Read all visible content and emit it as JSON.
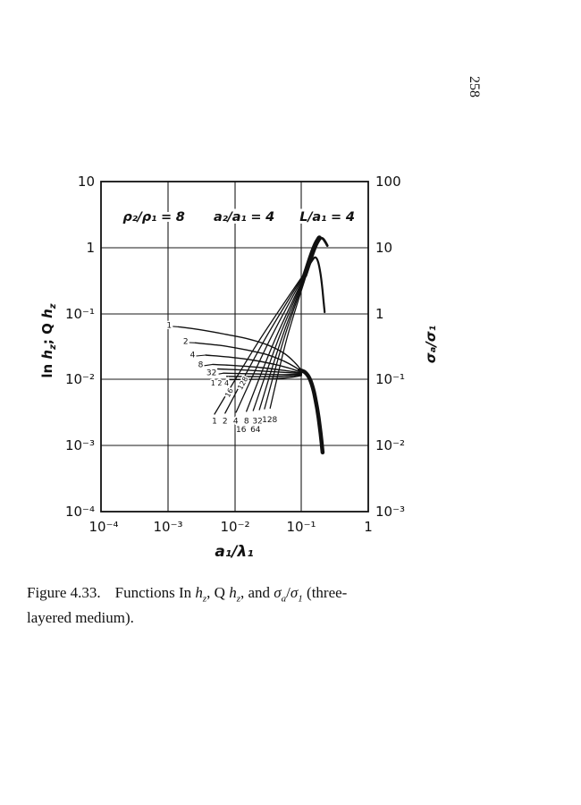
{
  "page": {
    "number": "258"
  },
  "caption": {
    "figure_label": "Figure 4.33.",
    "t1": "Functions In ",
    "h1": "h",
    "sub1": "z",
    "t2": ", Q ",
    "h2": "h",
    "sub2": "z",
    "t3": ", and ",
    "sig1": "σ",
    "suba": "a",
    "t4": "/",
    "sig2": "σ",
    "subn": "1",
    "t5": " (three-",
    "line2": "layered medium)."
  },
  "chart_data": {
    "type": "line",
    "scale": "log-log",
    "parameters": [
      "ρ₂/ρ₁ = 8",
      "a₂/a₁ = 4",
      "L/a₁ = 4"
    ],
    "axes": {
      "x": {
        "label": "a₁/λ₁",
        "scale": "log",
        "range": [
          0.0001,
          1
        ],
        "ticks": [
          "10⁻⁴",
          "10⁻³",
          "10⁻²",
          "10⁻¹",
          "1"
        ]
      },
      "y_left": {
        "label_parts": {
          "p1": "ln ",
          "h1": "h",
          "s1": "z",
          "p2": "; Q ",
          "h2": "h",
          "s2": "z"
        },
        "scale": "log",
        "range": [
          0.0001,
          10
        ],
        "ticks": [
          "10",
          "1",
          "10⁻¹",
          "10⁻²",
          "10⁻³",
          "10⁻⁴"
        ]
      },
      "y_right": {
        "label": "σₐ/σ₁",
        "scale": "log",
        "range": [
          0.001,
          100
        ],
        "ticks": [
          "100",
          "10",
          "1",
          "10⁻¹",
          "10⁻²",
          "10⁻³"
        ]
      }
    },
    "series": {
      "rising_lines": [
        {
          "label": "1",
          "points": [
            [
              0.005,
              0.003
            ],
            [
              0.0235,
              0.0395
            ],
            [
              0.13,
              0.52
            ]
          ]
        },
        {
          "label": "2",
          "points": [
            [
              0.0072,
              0.0031
            ],
            [
              0.0281,
              0.0401
            ],
            [
              0.13,
              0.52
            ]
          ]
        },
        {
          "label": "4",
          "points": [
            [
              0.0105,
              0.0032
            ],
            [
              0.034,
              0.0408
            ],
            [
              0.13,
              0.52
            ]
          ]
        },
        {
          "label": "8",
          "points": [
            [
              0.015,
              0.0033
            ],
            [
              0.0406,
              0.0414
            ],
            [
              0.13,
              0.52
            ]
          ]
        },
        {
          "label": "16",
          "points": [
            [
              0.019,
              0.0034
            ],
            [
              0.0457,
              0.042
            ],
            [
              0.13,
              0.52
            ]
          ]
        },
        {
          "label": "32",
          "points": [
            [
              0.0235,
              0.0035
            ],
            [
              0.0508,
              0.0427
            ],
            [
              0.13,
              0.52
            ]
          ]
        },
        {
          "label": "64",
          "points": [
            [
              0.028,
              0.0036
            ],
            [
              0.0555,
              0.0433
            ],
            [
              0.13,
              0.52
            ]
          ]
        },
        {
          "label": "128",
          "points": [
            [
              0.034,
              0.0037
            ],
            [
              0.0612,
              0.0439
            ],
            [
              0.13,
              0.52
            ]
          ]
        }
      ],
      "rising_bundle": {
        "points": [
          [
            0.112,
            0.38
          ],
          [
            0.138,
            0.72
          ],
          [
            0.163,
            1.12
          ],
          [
            0.185,
            1.4
          ]
        ],
        "width": 5.5
      },
      "rising_hook": {
        "points": [
          [
            0.185,
            1.4
          ],
          [
            0.208,
            1.37
          ],
          [
            0.227,
            1.22
          ],
          [
            0.244,
            1.07
          ]
        ],
        "width": 2.8
      },
      "secondary_peak": {
        "points": [
          [
            0.108,
            0.34
          ],
          [
            0.128,
            0.52
          ],
          [
            0.148,
            0.66
          ],
          [
            0.163,
            0.71
          ],
          [
            0.178,
            0.6
          ],
          [
            0.193,
            0.4
          ],
          [
            0.206,
            0.235
          ],
          [
            0.216,
            0.14
          ],
          [
            0.2225,
            0.105
          ]
        ],
        "width": 2.2
      },
      "flat_curves": [
        {
          "label": "1",
          "points": [
            [
              0.00145,
              0.063
            ],
            [
              0.003,
              0.057
            ],
            [
              0.007,
              0.049
            ],
            [
              0.015,
              0.042
            ],
            [
              0.03,
              0.034
            ],
            [
              0.055,
              0.025
            ],
            [
              0.08,
              0.018
            ],
            [
              0.1,
              0.0138
            ]
          ]
        },
        {
          "label": "2",
          "points": [
            [
              0.0026,
              0.036
            ],
            [
              0.006,
              0.033
            ],
            [
              0.013,
              0.029
            ],
            [
              0.03,
              0.024
            ],
            [
              0.055,
              0.019
            ],
            [
              0.08,
              0.0155
            ],
            [
              0.1,
              0.0132
            ]
          ]
        },
        {
          "label": "4",
          "points": [
            [
              0.0037,
              0.0235
            ],
            [
              0.008,
              0.022
            ],
            [
              0.02,
              0.0195
            ],
            [
              0.045,
              0.0165
            ],
            [
              0.075,
              0.0143
            ],
            [
              0.1,
              0.0129
            ]
          ]
        },
        {
          "label": "8",
          "points": [
            [
              0.0047,
              0.017
            ],
            [
              0.01,
              0.0163
            ],
            [
              0.025,
              0.0152
            ],
            [
              0.055,
              0.0138
            ],
            [
              0.1,
              0.0126
            ]
          ]
        },
        {
          "label": "16",
          "points": [
            [
              0.0056,
              0.0145
            ],
            [
              0.015,
              0.0139
            ],
            [
              0.04,
              0.0131
            ],
            [
              0.1,
              0.0124
            ]
          ]
        },
        {
          "label": "32",
          "points": [
            [
              0.0068,
              0.0125
            ],
            [
              0.02,
              0.0122
            ],
            [
              0.05,
              0.0119
            ],
            [
              0.1,
              0.0121
            ]
          ]
        },
        {
          "label": "64",
          "points": [
            [
              0.0076,
              0.0112
            ],
            [
              0.025,
              0.0111
            ],
            [
              0.06,
              0.0113
            ],
            [
              0.1,
              0.0118
            ]
          ]
        },
        {
          "label": "128",
          "points": [
            [
              0.0085,
              0.01
            ],
            [
              0.03,
              0.0102
            ],
            [
              0.065,
              0.0107
            ],
            [
              0.1,
              0.0115
            ]
          ]
        }
      ],
      "flat_bundle": {
        "points": [
          [
            0.094,
            0.0139
          ],
          [
            0.113,
            0.0129
          ],
          [
            0.133,
            0.0103
          ],
          [
            0.153,
            0.0066
          ],
          [
            0.172,
            0.0036
          ],
          [
            0.188,
            0.00195
          ],
          [
            0.199,
            0.00118
          ],
          [
            0.207,
            0.00079
          ]
        ],
        "width": 4.5
      }
    },
    "curve_labels": [
      {
        "t": "1",
        "x": 0.00105,
        "y": 0.066,
        "size": 9,
        "leader": 0
      },
      {
        "t": "2",
        "x": 0.00185,
        "y": 0.0375,
        "size": 9,
        "leader": 1
      },
      {
        "t": "4",
        "x": 0.00235,
        "y": 0.0235,
        "size": 9,
        "leader": 2
      },
      {
        "t": "8",
        "x": 0.0031,
        "y": 0.0168,
        "size": 9,
        "leader": 3
      },
      {
        "t": "32",
        "x": 0.0045,
        "y": 0.0125,
        "size": 9,
        "leader": 5
      },
      {
        "t": "1 2 4",
        "x": 0.006,
        "y": 0.0088,
        "size": 8
      },
      {
        "t": "16",
        "x": 0.0083,
        "y": 0.0063,
        "size": 8,
        "rot": -62
      },
      {
        "t": "128",
        "x": 0.0133,
        "y": 0.0088,
        "size": 8,
        "rot": -62
      },
      {
        "t": "1",
        "x": 0.005,
        "y": 0.00235,
        "size": 9
      },
      {
        "t": "2",
        "x": 0.0072,
        "y": 0.00235,
        "size": 9
      },
      {
        "t": "4",
        "x": 0.0104,
        "y": 0.00235,
        "size": 9
      },
      {
        "t": "8",
        "x": 0.015,
        "y": 0.00235,
        "size": 9
      },
      {
        "t": "32",
        "x": 0.022,
        "y": 0.00235,
        "size": 9
      },
      {
        "t": "128",
        "x": 0.0335,
        "y": 0.00245,
        "size": 9
      },
      {
        "t": "16",
        "x": 0.0125,
        "y": 0.00175,
        "size": 9
      },
      {
        "t": "64",
        "x": 0.0205,
        "y": 0.00175,
        "size": 9
      }
    ]
  }
}
